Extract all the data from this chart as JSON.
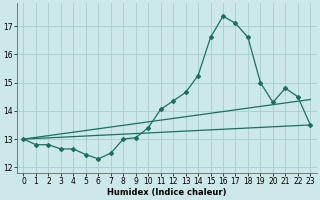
{
  "bg_color": "#cce8e8",
  "grid_color": "#aacccc",
  "line_color": "#1a7060",
  "xlabel": "Humidex (Indice chaleur)",
  "xlim": [
    -0.5,
    23.5
  ],
  "ylim": [
    11.8,
    17.8
  ],
  "yticks": [
    12,
    13,
    14,
    15,
    16,
    17
  ],
  "xticks": [
    0,
    1,
    2,
    3,
    4,
    5,
    6,
    7,
    8,
    9,
    10,
    11,
    12,
    13,
    14,
    15,
    16,
    17,
    18,
    19,
    20,
    21,
    22,
    23
  ],
  "curve1_x": [
    0,
    1,
    2,
    3,
    4,
    5,
    6,
    7,
    8,
    9,
    10,
    11,
    12,
    13,
    14,
    15,
    16,
    17,
    18,
    19,
    20,
    21,
    22,
    23
  ],
  "curve1_y": [
    13.0,
    12.8,
    12.8,
    12.65,
    12.65,
    12.45,
    12.3,
    12.5,
    13.0,
    13.05,
    13.4,
    14.05,
    14.35,
    14.65,
    15.25,
    16.6,
    17.35,
    17.1,
    16.6,
    15.0,
    14.3,
    14.8,
    14.5,
    13.5
  ],
  "curve2_x": [
    0,
    23
  ],
  "curve2_y": [
    13.0,
    14.4
  ],
  "curve3_x": [
    0,
    23
  ],
  "curve3_y": [
    13.0,
    13.5
  ]
}
